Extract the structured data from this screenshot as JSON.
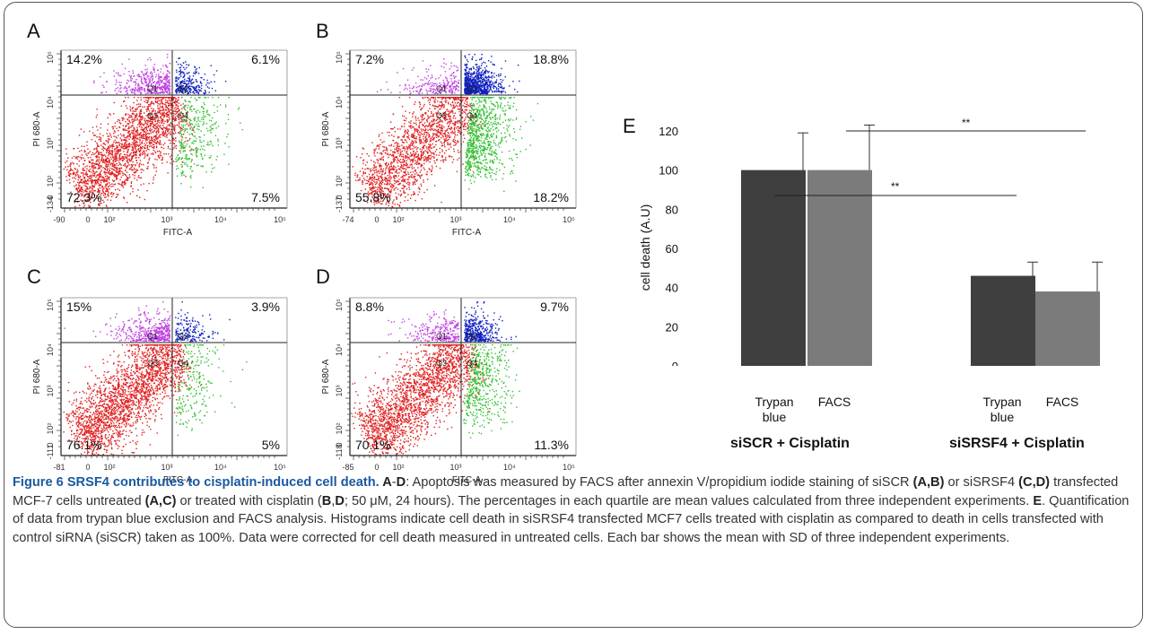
{
  "panels": [
    {
      "id": "A",
      "q1": "14.2%",
      "q2": "6.1%",
      "q3": "72.3%",
      "q4": "7.5%",
      "ymin": "-134",
      "xmin": "-90"
    },
    {
      "id": "B",
      "q1": "7.2%",
      "q2": "18.8%",
      "q3": "55.8%",
      "q4": "18.2%",
      "ymin": "-137",
      "xmin": "-74"
    },
    {
      "id": "C",
      "q1": "15%",
      "q2": "3.9%",
      "q3": "76.1%",
      "q4": "5%",
      "ymin": "-111",
      "xmin": "-81"
    },
    {
      "id": "D",
      "q1": "8.8%",
      "q2": "9.7%",
      "q3": "70.1%",
      "q4": "11.3%",
      "ymin": "-118",
      "xmin": "-85"
    }
  ],
  "facs_axes": {
    "xlabel": "FITC-A",
    "ylabel": "PI 680-A",
    "quadrants": [
      "Q1",
      "Q2",
      "Q3",
      "Q4"
    ]
  },
  "colors": {
    "q1": "#c040e0",
    "q2": "#1020c0",
    "q3": "#e02020",
    "q4": "#30c030",
    "bar_dark": "#3f3f3f",
    "bar_light": "#7b7b7b",
    "caption_title": "#1a5aa0"
  },
  "chart_data": {
    "type": "bar",
    "panel_label": "E",
    "ylabel": "cell death (A.U)",
    "ylim": [
      0,
      120
    ],
    "yticks": [
      0,
      20,
      40,
      60,
      80,
      100,
      120
    ],
    "groups": [
      "siSCR + Cisplatin",
      "siSRSF4 + Cisplatin"
    ],
    "categories": [
      "Trypan blue",
      "FACS",
      "Trypan blue",
      "FACS"
    ],
    "values": [
      100,
      100,
      46,
      38
    ],
    "errors": [
      19,
      23,
      7,
      15
    ],
    "significance": [
      "**",
      "**"
    ],
    "grid": false
  },
  "caption": {
    "title": "Figure 6 SRSF4 contributes to cisplatin-induced cell death.",
    "t1": " A",
    "t2": "-",
    "t3": "D",
    "t4": ": Apoptosis was measured by FACS after annexin V/propidium iodide staining of siSCR ",
    "t5": "(A,B)",
    "t6": " or siSRSF4 ",
    "t7": "(C,D)",
    "t8": " transfected MCF-7 cells untreated ",
    "t9": "(A,C)",
    "t10": " or treated with cisplatin (",
    "t11": "B",
    "t12": ",",
    "t13": "D",
    "t14": "; 50 μM, 24 hours). The percentages in each quartile are mean values calculated from three independent experiments. ",
    "t15": "E",
    "t16": ". Quantification of data from trypan blue exclusion and FACS analysis. Histograms indicate cell death in siSRSF4 transfected MCF7 cells treated with cisplatin as compared to death in cells transfected with control siRNA (siSCR) taken as 100%. Data were corrected for cell death measured in untreated cells. Each bar shows the mean with SD of three independent experiments."
  }
}
